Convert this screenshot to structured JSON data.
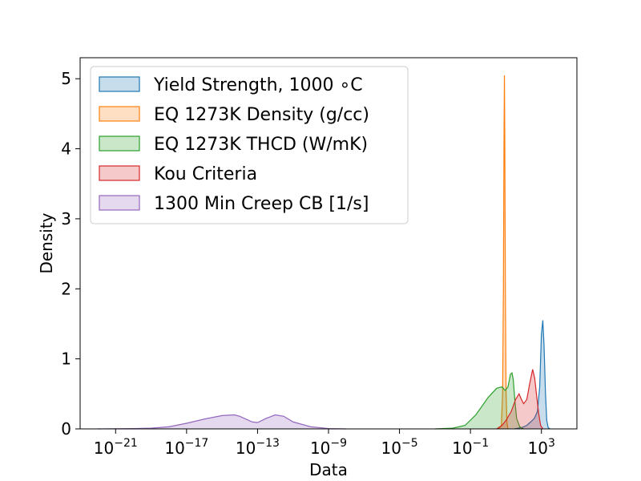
{
  "chart_data": {
    "type": "area",
    "xlabel": "Data",
    "ylabel": "Density",
    "x_scale": "log",
    "xlim": [
      1e-23,
      100000.0
    ],
    "ylim": [
      0,
      5.3
    ],
    "x_ticks": [
      {
        "value": 1e-21,
        "base": "10",
        "exp": "−21"
      },
      {
        "value": 1e-17,
        "base": "10",
        "exp": "−17"
      },
      {
        "value": 1e-13,
        "base": "10",
        "exp": "−13"
      },
      {
        "value": 1e-09,
        "base": "10",
        "exp": "−9"
      },
      {
        "value": 1e-05,
        "base": "10",
        "exp": "−5"
      },
      {
        "value": 0.1,
        "base": "10",
        "exp": "−1"
      },
      {
        "value": 1000.0,
        "base": "10",
        "exp": "3"
      }
    ],
    "y_ticks": [
      0,
      1,
      2,
      3,
      4,
      5
    ],
    "legend_position": "upper-left",
    "grid": false,
    "series": [
      {
        "name": "Yield Strength, 1000 ∘C",
        "color": "#1f77b4",
        "points": [
          [
            30,
            0
          ],
          [
            80,
            0.02
          ],
          [
            150,
            0.05
          ],
          [
            250,
            0.1
          ],
          [
            400,
            0.15
          ],
          [
            600,
            0.25
          ],
          [
            800,
            0.6
          ],
          [
            1000,
            1.35
          ],
          [
            1200,
            1.55
          ],
          [
            1400,
            1.2
          ],
          [
            1700,
            0.5
          ],
          [
            2000,
            0.12
          ],
          [
            2400,
            0.02
          ],
          [
            3000,
            0
          ]
        ]
      },
      {
        "name": "EQ 1273K Density (g/cc)",
        "color": "#ff7f0e",
        "points": [
          [
            4,
            0
          ],
          [
            5.5,
            0.05
          ],
          [
            6.5,
            0.5
          ],
          [
            7.2,
            2.0
          ],
          [
            7.8,
            4.2
          ],
          [
            8.2,
            5.05
          ],
          [
            8.6,
            4.2
          ],
          [
            9.3,
            2.0
          ],
          [
            10.2,
            0.5
          ],
          [
            11.5,
            0.08
          ],
          [
            13,
            0
          ]
        ]
      },
      {
        "name": "EQ 1273K THCD (W/mK)",
        "color": "#2ca02c",
        "points": [
          [
            0.001,
            0
          ],
          [
            0.01,
            0.01
          ],
          [
            0.05,
            0.05
          ],
          [
            0.2,
            0.2
          ],
          [
            1,
            0.45
          ],
          [
            3,
            0.58
          ],
          [
            6,
            0.6
          ],
          [
            9,
            0.55
          ],
          [
            13,
            0.6
          ],
          [
            18,
            0.78
          ],
          [
            22,
            0.8
          ],
          [
            26,
            0.7
          ],
          [
            32,
            0.4
          ],
          [
            40,
            0.15
          ],
          [
            60,
            0.03
          ],
          [
            100,
            0
          ]
        ]
      },
      {
        "name": "Kou Criteria",
        "color": "#d62728",
        "points": [
          [
            3,
            0
          ],
          [
            6,
            0.05
          ],
          [
            10,
            0.12
          ],
          [
            20,
            0.25
          ],
          [
            35,
            0.42
          ],
          [
            55,
            0.5
          ],
          [
            75,
            0.42
          ],
          [
            100,
            0.36
          ],
          [
            150,
            0.42
          ],
          [
            220,
            0.65
          ],
          [
            320,
            0.85
          ],
          [
            420,
            0.72
          ],
          [
            550,
            0.45
          ],
          [
            700,
            0.22
          ],
          [
            900,
            0.05
          ],
          [
            1200,
            0
          ]
        ]
      },
      {
        "name": "1300 Min Creep CB [1/s]",
        "color": "#9467bd",
        "points": [
          [
            1e-22,
            0
          ],
          [
            1e-20,
            0.005
          ],
          [
            1e-19,
            0.01
          ],
          [
            1e-18,
            0.03
          ],
          [
            1e-17,
            0.08
          ],
          [
            1e-16,
            0.14
          ],
          [
            1e-15,
            0.19
          ],
          [
            5e-15,
            0.2
          ],
          [
            1e-14,
            0.18
          ],
          [
            5e-14,
            0.1
          ],
          [
            1e-13,
            0.09
          ],
          [
            3e-13,
            0.15
          ],
          [
            1e-12,
            0.2
          ],
          [
            3e-12,
            0.18
          ],
          [
            1e-11,
            0.1
          ],
          [
            1e-10,
            0.03
          ],
          [
            1e-09,
            0.005
          ],
          [
            1e-08,
            0
          ]
        ]
      }
    ]
  }
}
